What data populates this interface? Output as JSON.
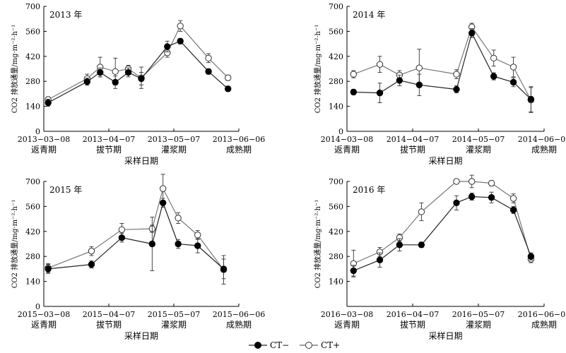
{
  "chart_data": [
    {
      "type": "line",
      "title": "2013 年",
      "ylabel": "CO2 排放通量/mg·m⁻²·h⁻¹",
      "xlabel": "采样日期",
      "ylim": [
        0,
        700
      ],
      "yticks": [
        0,
        140,
        280,
        420,
        560,
        700
      ],
      "xlim": [
        "2013-03-08",
        "2013-06-06"
      ],
      "xticks": [
        "2013-03-08",
        "2013-04-07",
        "2013-05-07",
        "2013-06-06"
      ],
      "stages": [
        "返青期",
        "拔节期",
        "灌浆期",
        "成熟期"
      ],
      "series": [
        {
          "name": "CT−",
          "marker": "filled",
          "x": [
            "2013-03-10",
            "2013-03-28",
            "2013-04-03",
            "2013-04-10",
            "2013-04-16",
            "2013-04-22",
            "2013-05-04",
            "2013-05-10",
            "2013-05-23",
            "2013-06-01"
          ],
          "y": [
            160,
            278,
            330,
            275,
            330,
            295,
            475,
            505,
            335,
            238
          ],
          "err": [
            20,
            20,
            25,
            35,
            25,
            35,
            30,
            15,
            15,
            15
          ]
        },
        {
          "name": "CT+",
          "marker": "open",
          "x": [
            "2013-03-10",
            "2013-03-28",
            "2013-04-03",
            "2013-04-10",
            "2013-04-16",
            "2013-04-22",
            "2013-05-04",
            "2013-05-10",
            "2013-05-23",
            "2013-06-01"
          ],
          "y": [
            178,
            295,
            360,
            335,
            350,
            300,
            440,
            590,
            410,
            300
          ],
          "err": [
            15,
            25,
            55,
            75,
            20,
            60,
            25,
            30,
            25,
            15
          ]
        }
      ]
    },
    {
      "type": "line",
      "title": "2014 年",
      "ylabel": "CO2 排放通量/mg·m⁻²·h⁻¹",
      "xlabel": "采样日期",
      "ylim": [
        0,
        700
      ],
      "yticks": [
        0,
        140,
        280,
        420,
        560,
        700
      ],
      "xlim": [
        "2014-03-08",
        "2014-06-06"
      ],
      "xticks": [
        "2014-03-08",
        "2014-04-07",
        "2014-05-07",
        "2014-06-06"
      ],
      "stages": [
        "返青期",
        "拔节期",
        "灌浆期",
        "成熟期"
      ],
      "series": [
        {
          "name": "CT−",
          "marker": "filled",
          "x": [
            "2014-03-11",
            "2014-03-23",
            "2014-04-01",
            "2014-04-10",
            "2014-04-27",
            "2014-05-04",
            "2014-05-14",
            "2014-05-23",
            "2014-05-31"
          ],
          "y": [
            220,
            215,
            285,
            260,
            235,
            550,
            308,
            275,
            180
          ],
          "err": [
            15,
            55,
            30,
            60,
            20,
            25,
            20,
            25,
            70
          ]
        },
        {
          "name": "CT+",
          "marker": "open",
          "x": [
            "2014-03-11",
            "2014-03-23",
            "2014-04-01",
            "2014-04-10",
            "2014-04-27",
            "2014-05-04",
            "2014-05-14",
            "2014-05-23",
            "2014-05-31"
          ],
          "y": [
            320,
            375,
            315,
            355,
            320,
            585,
            410,
            360,
            175
          ],
          "err": [
            20,
            45,
            25,
            105,
            25,
            20,
            45,
            55,
            70
          ]
        }
      ]
    },
    {
      "type": "line",
      "title": "2015 年",
      "ylabel": "CO2 排放通量/mg·m⁻²·h⁻¹",
      "xlabel": "采样日期",
      "ylim": [
        0,
        700
      ],
      "yticks": [
        0,
        140,
        280,
        420,
        560,
        700
      ],
      "xlim": [
        "2015-03-08",
        "2015-06-06"
      ],
      "xticks": [
        "2015-03-08",
        "2015-04-07",
        "2015-05-07",
        "2015-06-06"
      ],
      "stages": [
        "返青期",
        "拔节期",
        "灌浆期",
        "成熟期"
      ],
      "series": [
        {
          "name": "CT−",
          "marker": "filled",
          "x": [
            "2015-03-10",
            "2015-03-30",
            "2015-04-13",
            "2015-04-27",
            "2015-05-02",
            "2015-05-09",
            "2015-05-18",
            "2015-05-30"
          ],
          "y": [
            210,
            235,
            385,
            350,
            580,
            350,
            340,
            210
          ],
          "err": [
            25,
            20,
            25,
            150,
            25,
            25,
            40,
            55
          ]
        },
        {
          "name": "CT+",
          "marker": "open",
          "x": [
            "2015-03-10",
            "2015-03-30",
            "2015-04-13",
            "2015-04-27",
            "2015-05-02",
            "2015-05-09",
            "2015-05-18",
            "2015-05-30"
          ],
          "y": [
            215,
            310,
            430,
            435,
            660,
            495,
            400,
            205
          ],
          "err": [
            25,
            25,
            35,
            20,
            80,
            30,
            25,
            80
          ]
        }
      ]
    },
    {
      "type": "line",
      "title": "2016 年",
      "ylabel": "CO2 排放通量/mg·m⁻²·h⁻¹",
      "xlabel": "采样日期",
      "ylim": [
        0,
        700
      ],
      "yticks": [
        140,
        280,
        420,
        560,
        700
      ],
      "xlim": [
        "2016-03-08",
        "2016-06-06"
      ],
      "xticks": [
        "2016-03-08",
        "2016-04-07",
        "2016-05-07",
        "2016-06-06"
      ],
      "stages": [
        "返青期",
        "拔节期",
        "灌浆期",
        "成熟期"
      ],
      "series": [
        {
          "name": "CT−",
          "marker": "filled",
          "x": [
            "2016-03-11",
            "2016-03-23",
            "2016-04-01",
            "2016-04-11",
            "2016-04-27",
            "2016-05-04",
            "2016-05-13",
            "2016-05-23",
            "2016-05-31"
          ],
          "y": [
            200,
            260,
            345,
            345,
            580,
            615,
            610,
            540,
            280
          ],
          "err": [
            30,
            40,
            35,
            15,
            40,
            20,
            30,
            20,
            20
          ]
        },
        {
          "name": "CT+",
          "marker": "open",
          "x": [
            "2016-03-11",
            "2016-03-23",
            "2016-04-01",
            "2016-04-11",
            "2016-04-27",
            "2016-05-04",
            "2016-05-13",
            "2016-05-23",
            "2016-05-31"
          ],
          "y": [
            240,
            305,
            385,
            530,
            700,
            700,
            690,
            605,
            265
          ],
          "err": [
            75,
            25,
            20,
            50,
            10,
            35,
            15,
            25,
            20
          ]
        }
      ]
    }
  ],
  "legend": {
    "items": [
      {
        "label": "CT−",
        "marker": "filled"
      },
      {
        "label": "CT+",
        "marker": "open"
      }
    ]
  }
}
